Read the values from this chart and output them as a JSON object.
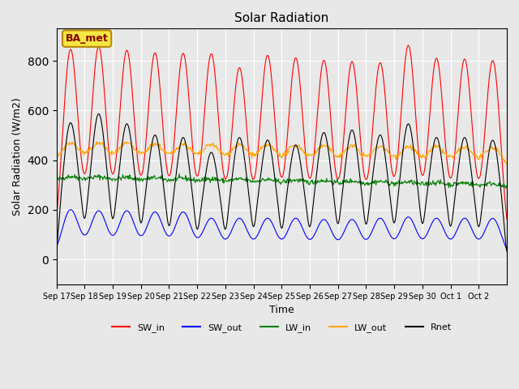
{
  "title": "Solar Radiation",
  "xlabel": "Time",
  "ylabel": "Solar Radiation (W/m2)",
  "ylim": [
    -100,
    930
  ],
  "background_color": "#e8e8e8",
  "plot_bg_color": "#e8e8e8",
  "legend_label": "BA_met",
  "legend_entries": [
    "SW_in",
    "SW_out",
    "LW_in",
    "LW_out",
    "Rnet"
  ],
  "legend_colors": [
    "red",
    "blue",
    "green",
    "orange",
    "black"
  ],
  "n_days": 16,
  "SW_in_peaks": [
    845,
    855,
    840,
    830,
    828,
    826,
    770,
    820,
    810,
    800,
    795,
    790,
    860,
    808,
    805,
    800
  ],
  "SW_out_peaks": [
    200,
    195,
    195,
    190,
    190,
    165,
    165,
    165,
    165,
    160,
    160,
    165,
    170,
    165,
    165,
    165
  ],
  "Rnet_peaks": [
    550,
    585,
    545,
    500,
    490,
    430,
    490,
    480,
    460,
    510,
    520,
    500,
    545,
    490,
    490,
    480
  ],
  "LW_in_base": 310,
  "LW_out_base": 390,
  "tick_labels": [
    "Sep 17",
    "Sep 18",
    "Sep 19",
    "Sep 20",
    "Sep 21",
    "Sep 22",
    "Sep 23",
    "Sep 24",
    "Sep 25",
    "Sep 26",
    "Sep 27",
    "Sep 28",
    "Sep 29",
    "Sep 30",
    "Oct 1",
    "Oct 2"
  ]
}
